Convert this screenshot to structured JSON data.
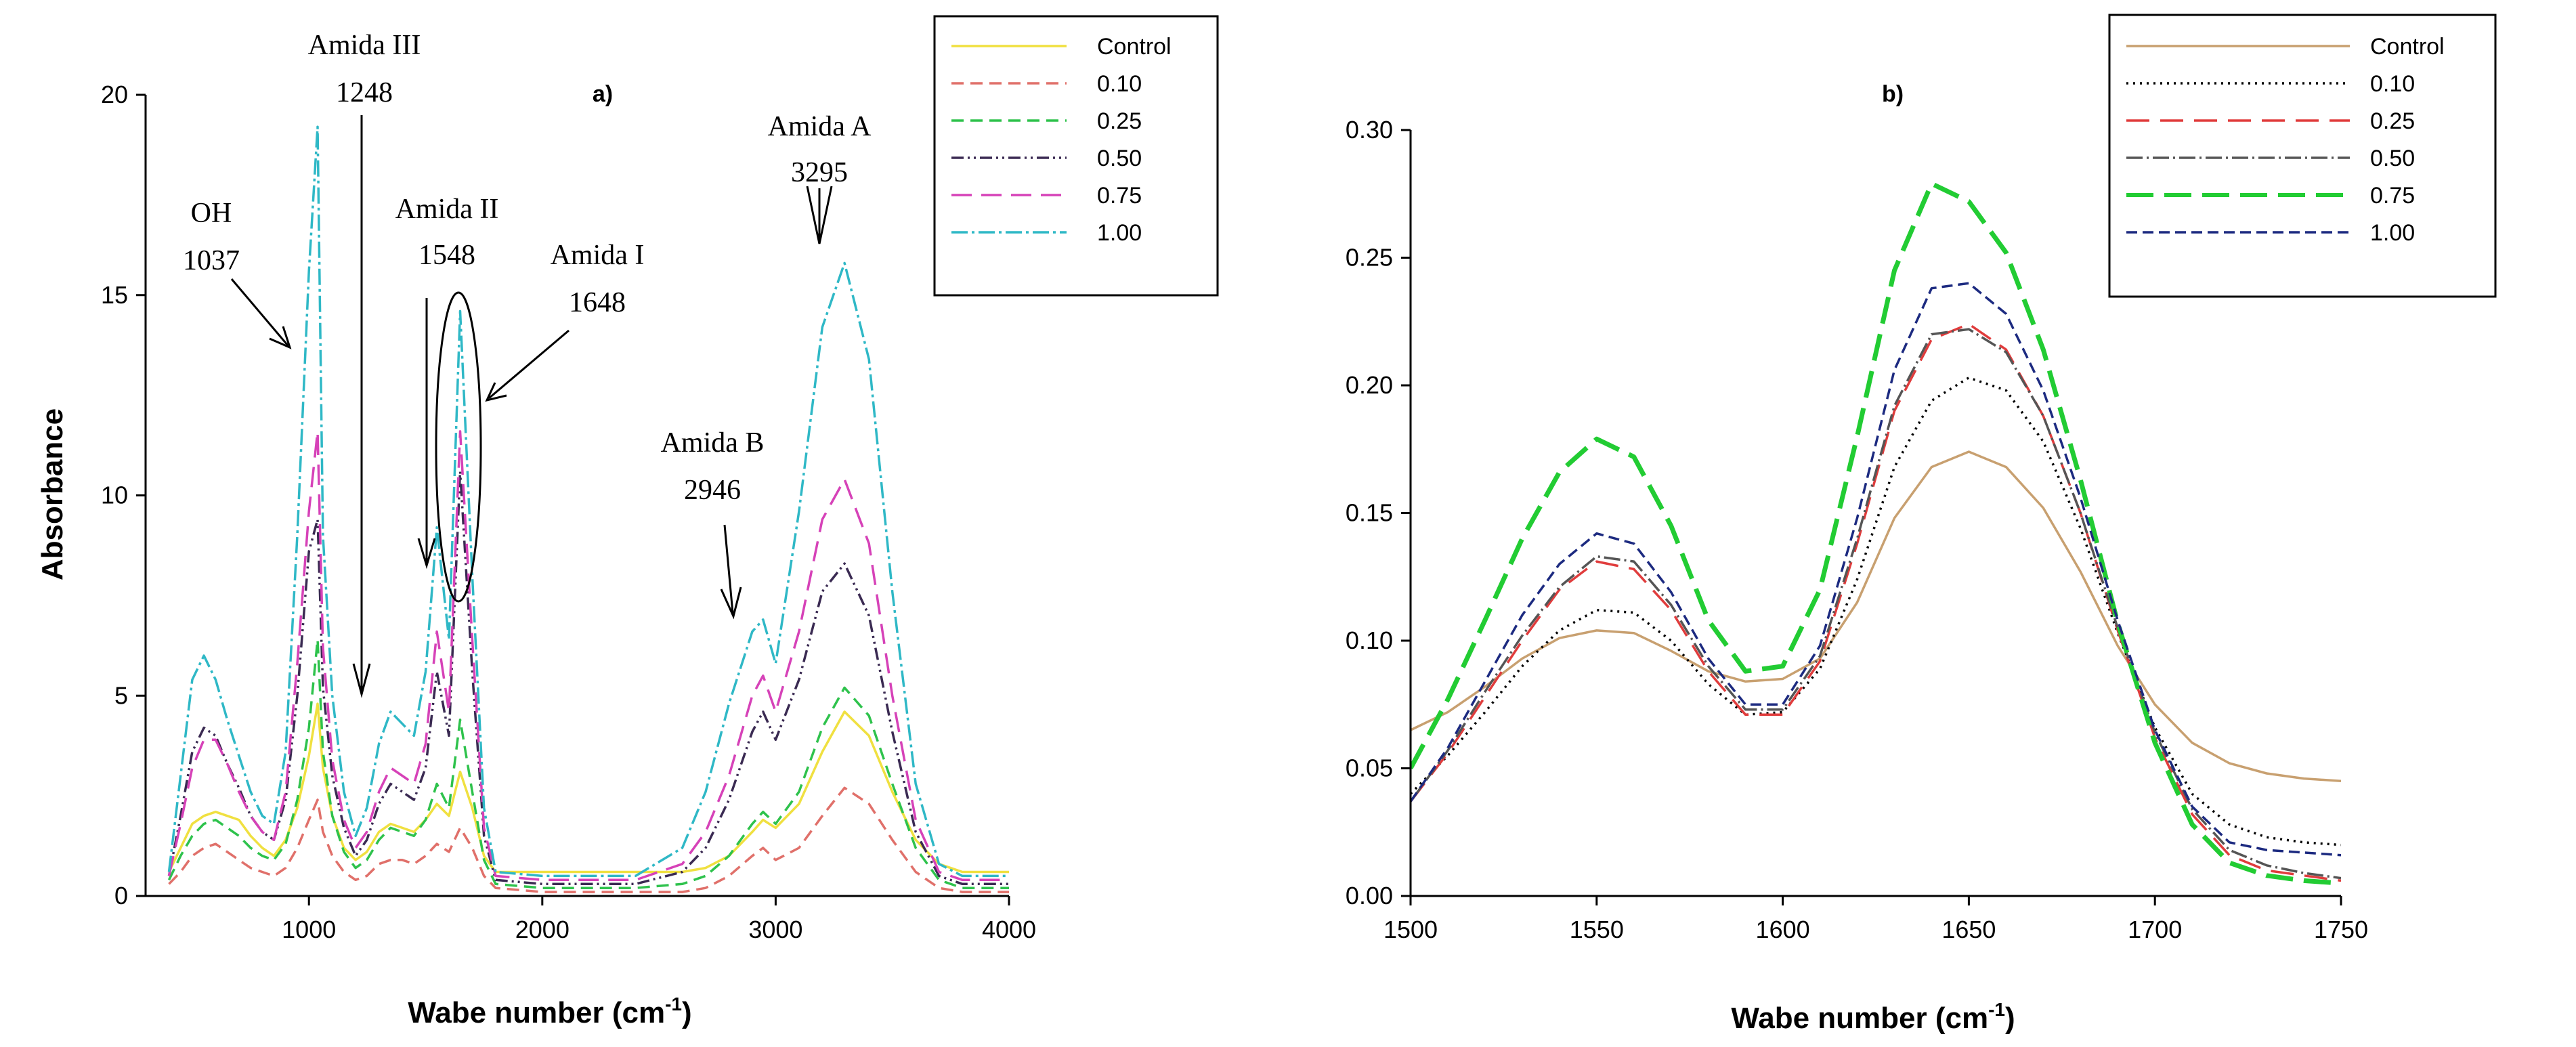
{
  "chart_data": [
    {
      "type": "line",
      "panel_label": "a)",
      "xlabel_main": "Wabe number (cm",
      "xlabel_sup": "-1",
      "xlabel_tail": ")",
      "ylabel": "Absorbance",
      "xlim": [
        300,
        4000
      ],
      "ylim": [
        0,
        20
      ],
      "xticks": [
        1000,
        2000,
        3000,
        4000
      ],
      "yticks": [
        0,
        5,
        10,
        15,
        20
      ],
      "legend_position": "top-right",
      "series": [
        {
          "name": "Control",
          "color": "#f0e040",
          "dash": "solid",
          "x": [
            400,
            450,
            500,
            550,
            600,
            650,
            700,
            750,
            800,
            850,
            900,
            950,
            1000,
            1037,
            1060,
            1100,
            1150,
            1200,
            1248,
            1300,
            1350,
            1400,
            1450,
            1500,
            1548,
            1600,
            1648,
            1700,
            1750,
            1800,
            2000,
            2200,
            2400,
            2600,
            2700,
            2800,
            2900,
            2946,
            3000,
            3100,
            3200,
            3295,
            3400,
            3500,
            3600,
            3700,
            3800,
            4000
          ],
          "y": [
            0.6,
            1.2,
            1.8,
            2.0,
            2.1,
            2.0,
            1.9,
            1.5,
            1.2,
            1.0,
            1.4,
            2.2,
            3.5,
            4.8,
            3.2,
            2.0,
            1.2,
            0.9,
            1.1,
            1.6,
            1.8,
            1.7,
            1.6,
            1.9,
            2.3,
            2.0,
            3.1,
            2.2,
            1.0,
            0.6,
            0.6,
            0.6,
            0.6,
            0.6,
            0.7,
            1.0,
            1.6,
            1.9,
            1.7,
            2.3,
            3.6,
            4.6,
            4.0,
            2.6,
            1.4,
            0.8,
            0.6,
            0.6
          ]
        },
        {
          "name": "0.10",
          "color": "#e0706a",
          "dash": "18 10",
          "x": [
            400,
            450,
            500,
            550,
            600,
            650,
            700,
            750,
            800,
            850,
            900,
            950,
            1000,
            1037,
            1060,
            1100,
            1150,
            1200,
            1248,
            1300,
            1350,
            1400,
            1450,
            1500,
            1548,
            1600,
            1648,
            1700,
            1750,
            1800,
            2000,
            2200,
            2400,
            2600,
            2700,
            2800,
            2900,
            2946,
            3000,
            3100,
            3200,
            3295,
            3400,
            3500,
            3600,
            3700,
            3800,
            4000
          ],
          "y": [
            0.3,
            0.6,
            1.0,
            1.2,
            1.3,
            1.1,
            0.9,
            0.7,
            0.6,
            0.5,
            0.7,
            1.2,
            1.9,
            2.4,
            1.6,
            1.0,
            0.6,
            0.4,
            0.5,
            0.8,
            0.9,
            0.9,
            0.8,
            1.0,
            1.3,
            1.1,
            1.7,
            1.2,
            0.5,
            0.2,
            0.1,
            0.1,
            0.1,
            0.1,
            0.2,
            0.5,
            1.0,
            1.2,
            0.9,
            1.2,
            2.0,
            2.7,
            2.3,
            1.4,
            0.6,
            0.2,
            0.1,
            0.1
          ]
        },
        {
          "name": "0.25",
          "color": "#2ec24c",
          "dash": "18 10",
          "x": [
            400,
            450,
            500,
            550,
            600,
            650,
            700,
            750,
            800,
            850,
            900,
            950,
            1000,
            1037,
            1060,
            1100,
            1150,
            1200,
            1248,
            1300,
            1350,
            1400,
            1450,
            1500,
            1548,
            1600,
            1648,
            1700,
            1750,
            1800,
            2000,
            2200,
            2400,
            2600,
            2700,
            2800,
            2900,
            2946,
            3000,
            3100,
            3200,
            3295,
            3400,
            3500,
            3600,
            3700,
            3800,
            4000
          ],
          "y": [
            0.4,
            1.0,
            1.5,
            1.8,
            1.9,
            1.7,
            1.5,
            1.2,
            1.0,
            0.9,
            1.3,
            2.4,
            4.2,
            6.4,
            3.6,
            2.0,
            1.1,
            0.7,
            0.9,
            1.4,
            1.7,
            1.6,
            1.5,
            1.9,
            2.8,
            2.2,
            4.4,
            2.6,
            0.9,
            0.3,
            0.2,
            0.2,
            0.2,
            0.3,
            0.5,
            1.0,
            1.8,
            2.1,
            1.8,
            2.6,
            4.2,
            5.2,
            4.5,
            2.8,
            1.2,
            0.4,
            0.2,
            0.2
          ]
        },
        {
          "name": "0.50",
          "color": "#3a2a52",
          "dash": "18 6 3 6 3 6",
          "x": [
            400,
            450,
            500,
            550,
            600,
            650,
            700,
            750,
            800,
            850,
            900,
            950,
            1000,
            1037,
            1060,
            1100,
            1150,
            1200,
            1248,
            1300,
            1350,
            1400,
            1450,
            1500,
            1548,
            1600,
            1648,
            1700,
            1750,
            1800,
            2000,
            2200,
            2400,
            2600,
            2700,
            2800,
            2900,
            2946,
            3000,
            3100,
            3200,
            3295,
            3400,
            3500,
            3600,
            3700,
            3800,
            4000
          ],
          "y": [
            0.5,
            2.0,
            3.6,
            4.2,
            4.0,
            3.3,
            2.7,
            2.0,
            1.6,
            1.4,
            2.4,
            5.0,
            8.6,
            9.4,
            5.2,
            3.0,
            1.7,
            1.0,
            1.4,
            2.3,
            2.8,
            2.6,
            2.4,
            3.2,
            5.6,
            4.0,
            10.6,
            5.6,
            1.5,
            0.4,
            0.3,
            0.3,
            0.3,
            0.6,
            1.2,
            2.4,
            4.1,
            4.6,
            3.9,
            5.4,
            7.6,
            8.3,
            7.0,
            4.1,
            1.6,
            0.5,
            0.3,
            0.3
          ]
        },
        {
          "name": "0.75",
          "color": "#d642b8",
          "dash": "30 14",
          "x": [
            400,
            450,
            500,
            550,
            600,
            650,
            700,
            750,
            800,
            850,
            900,
            950,
            1000,
            1037,
            1060,
            1100,
            1150,
            1200,
            1248,
            1300,
            1350,
            1400,
            1450,
            1500,
            1548,
            1600,
            1648,
            1700,
            1750,
            1800,
            2000,
            2200,
            2400,
            2600,
            2700,
            2800,
            2900,
            2946,
            3000,
            3100,
            3200,
            3295,
            3400,
            3500,
            3600,
            3700,
            3800,
            4000
          ],
          "y": [
            0.5,
            1.8,
            3.2,
            3.9,
            3.9,
            3.3,
            2.6,
            2.0,
            1.6,
            1.4,
            2.6,
            5.8,
            9.6,
            11.6,
            6.2,
            3.4,
            1.9,
            1.2,
            1.6,
            2.6,
            3.2,
            3.0,
            2.8,
            3.8,
            6.6,
            4.6,
            11.6,
            6.4,
            1.7,
            0.5,
            0.4,
            0.4,
            0.4,
            0.8,
            1.6,
            3.0,
            5.0,
            5.5,
            4.6,
            6.6,
            9.4,
            10.4,
            8.8,
            5.0,
            1.9,
            0.6,
            0.4,
            0.4
          ]
        },
        {
          "name": "1.00",
          "color": "#2fb8c6",
          "dash": "24 6 4 6",
          "x": [
            400,
            450,
            500,
            550,
            600,
            650,
            700,
            750,
            800,
            850,
            900,
            950,
            1000,
            1037,
            1060,
            1100,
            1150,
            1200,
            1248,
            1300,
            1350,
            1400,
            1450,
            1500,
            1548,
            1600,
            1648,
            1700,
            1750,
            1800,
            2000,
            2200,
            2400,
            2600,
            2700,
            2800,
            2900,
            2946,
            3000,
            3100,
            3200,
            3295,
            3400,
            3500,
            3600,
            3700,
            3800,
            4000
          ],
          "y": [
            0.6,
            3.0,
            5.4,
            6.0,
            5.4,
            4.4,
            3.5,
            2.6,
            2.0,
            1.8,
            3.6,
            9.0,
            15.6,
            19.2,
            9.0,
            5.0,
            2.6,
            1.5,
            2.2,
            3.8,
            4.6,
            4.3,
            4.0,
            5.6,
            9.2,
            6.4,
            14.6,
            8.0,
            2.2,
            0.6,
            0.5,
            0.5,
            0.5,
            1.2,
            2.6,
            4.8,
            6.6,
            6.9,
            5.8,
            9.6,
            14.2,
            15.8,
            13.4,
            7.6,
            2.8,
            0.8,
            0.5,
            0.5
          ]
        }
      ],
      "annotations": [
        {
          "line1": "Amida III",
          "line2": "1248"
        },
        {
          "line1": "OH",
          "line2": "1037"
        },
        {
          "line1": "Amida II",
          "line2": "1548"
        },
        {
          "line1": "Amida I",
          "line2": "1648"
        },
        {
          "line1": "Amida B",
          "line2": "2946"
        },
        {
          "line1": "Amida A",
          "line2": "3295"
        }
      ]
    },
    {
      "type": "line",
      "panel_label": "b)",
      "xlabel_main": "Wabe number (cm",
      "xlabel_sup": "-1",
      "xlabel_tail": ")",
      "ylabel": "",
      "xlim": [
        1500,
        1750
      ],
      "ylim": [
        0,
        0.3
      ],
      "xticks": [
        1500,
        1550,
        1600,
        1650,
        1700,
        1750
      ],
      "xtick_labels": [
        "1500",
        "1550",
        "1600",
        "1650",
        "1700",
        "1750"
      ],
      "yticks": [
        0,
        0.05,
        0.1,
        0.15,
        0.2,
        0.25,
        0.3
      ],
      "ytick_labels": [
        "0.00",
        "0.05",
        "0.10",
        "0.15",
        "0.20",
        "0.25",
        "0.30"
      ],
      "legend_position": "top-right",
      "series": [
        {
          "name": "Control",
          "color": "#c8a070",
          "dash": "solid",
          "x": [
            1500,
            1510,
            1520,
            1530,
            1540,
            1550,
            1560,
            1570,
            1580,
            1590,
            1600,
            1610,
            1620,
            1630,
            1640,
            1650,
            1660,
            1670,
            1680,
            1690,
            1700,
            1710,
            1720,
            1730,
            1740,
            1750
          ],
          "y": [
            0.065,
            0.072,
            0.082,
            0.093,
            0.101,
            0.104,
            0.103,
            0.096,
            0.088,
            0.084,
            0.085,
            0.093,
            0.115,
            0.148,
            0.168,
            0.174,
            0.168,
            0.152,
            0.127,
            0.098,
            0.075,
            0.06,
            0.052,
            0.048,
            0.046,
            0.045
          ]
        },
        {
          "name": "0.10",
          "color": "#000000",
          "dash": "3 7",
          "x": [
            1500,
            1510,
            1520,
            1530,
            1540,
            1550,
            1560,
            1570,
            1580,
            1590,
            1600,
            1610,
            1620,
            1630,
            1640,
            1650,
            1660,
            1670,
            1680,
            1690,
            1700,
            1710,
            1720,
            1730,
            1740,
            1750
          ],
          "y": [
            0.04,
            0.055,
            0.072,
            0.09,
            0.104,
            0.112,
            0.111,
            0.1,
            0.083,
            0.071,
            0.072,
            0.089,
            0.124,
            0.168,
            0.194,
            0.203,
            0.198,
            0.178,
            0.144,
            0.103,
            0.066,
            0.04,
            0.028,
            0.023,
            0.021,
            0.02
          ]
        },
        {
          "name": "0.25",
          "color": "#e03c3c",
          "dash": "34 16",
          "x": [
            1500,
            1510,
            1520,
            1530,
            1540,
            1550,
            1560,
            1570,
            1580,
            1590,
            1600,
            1610,
            1620,
            1630,
            1640,
            1650,
            1660,
            1670,
            1680,
            1690,
            1700,
            1710,
            1720,
            1730,
            1740,
            1750
          ],
          "y": [
            0.037,
            0.056,
            0.078,
            0.1,
            0.12,
            0.131,
            0.128,
            0.112,
            0.088,
            0.071,
            0.071,
            0.092,
            0.138,
            0.19,
            0.218,
            0.224,
            0.214,
            0.188,
            0.15,
            0.104,
            0.062,
            0.032,
            0.016,
            0.01,
            0.008,
            0.006
          ]
        },
        {
          "name": "0.50",
          "color": "#555555",
          "dash": "24 6 3 6",
          "x": [
            1500,
            1510,
            1520,
            1530,
            1540,
            1550,
            1560,
            1570,
            1580,
            1590,
            1600,
            1610,
            1620,
            1630,
            1640,
            1650,
            1660,
            1670,
            1680,
            1690,
            1700,
            1710,
            1720,
            1730,
            1740,
            1750
          ],
          "y": [
            0.037,
            0.057,
            0.08,
            0.102,
            0.121,
            0.133,
            0.131,
            0.114,
            0.09,
            0.073,
            0.073,
            0.094,
            0.14,
            0.192,
            0.22,
            0.222,
            0.213,
            0.188,
            0.15,
            0.105,
            0.064,
            0.034,
            0.018,
            0.012,
            0.009,
            0.007
          ]
        },
        {
          "name": "0.75",
          "color": "#22cc33",
          "dash": "40 16",
          "x": [
            1500,
            1510,
            1520,
            1530,
            1540,
            1550,
            1560,
            1570,
            1580,
            1590,
            1600,
            1610,
            1620,
            1630,
            1640,
            1650,
            1660,
            1670,
            1680,
            1690,
            1700,
            1710,
            1720,
            1730,
            1740,
            1750
          ],
          "y": [
            0.05,
            0.077,
            0.108,
            0.14,
            0.166,
            0.179,
            0.172,
            0.145,
            0.108,
            0.088,
            0.09,
            0.12,
            0.18,
            0.245,
            0.279,
            0.272,
            0.252,
            0.214,
            0.163,
            0.107,
            0.06,
            0.028,
            0.013,
            0.008,
            0.006,
            0.005
          ]
        },
        {
          "name": "1.00",
          "color": "#1c2a80",
          "dash": "16 8",
          "x": [
            1500,
            1510,
            1520,
            1530,
            1540,
            1550,
            1560,
            1570,
            1580,
            1590,
            1600,
            1610,
            1620,
            1630,
            1640,
            1650,
            1660,
            1670,
            1680,
            1690,
            1700,
            1710,
            1720,
            1730,
            1740,
            1750
          ],
          "y": [
            0.037,
            0.058,
            0.084,
            0.11,
            0.13,
            0.142,
            0.138,
            0.119,
            0.093,
            0.075,
            0.075,
            0.098,
            0.148,
            0.206,
            0.238,
            0.24,
            0.228,
            0.198,
            0.156,
            0.108,
            0.065,
            0.035,
            0.021,
            0.018,
            0.017,
            0.016
          ]
        }
      ]
    }
  ]
}
